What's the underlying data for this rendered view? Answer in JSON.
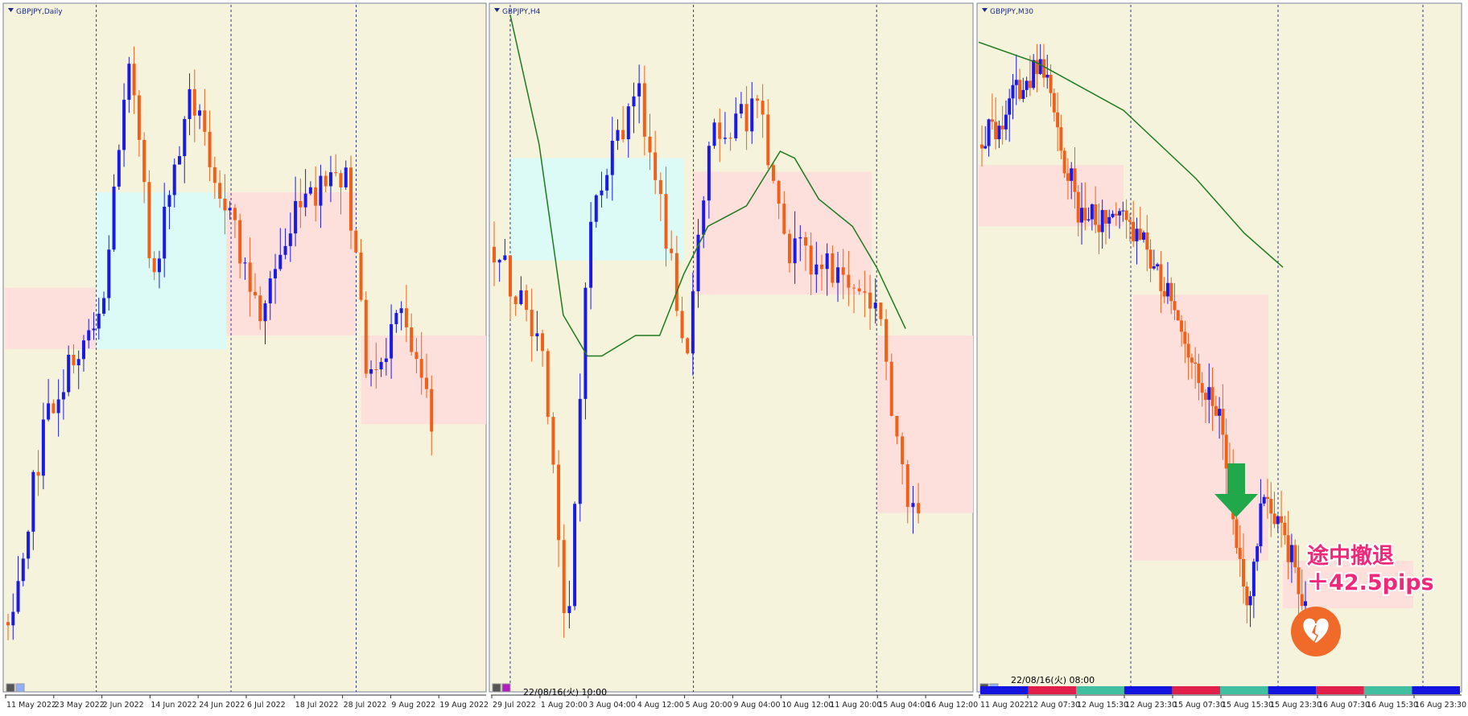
{
  "panels": [
    {
      "title": "GBPJPY,Daily",
      "x_labels": [
        "11 May 2022",
        "23 May 2022",
        "2 Jun 2022",
        "14 Jun 2022",
        "24 Jun 2022",
        "6 Jul 2022",
        "18 Jul 2022",
        "28 Jul 2022",
        "9 Aug 2022",
        "19 Aug 2022"
      ]
    },
    {
      "title": "GBPJPY,H4",
      "x_labels": [
        "29 Jul 2022",
        "1 Aug 20:00",
        "3 Aug 04:00",
        "4 Aug 12:00",
        "5 Aug 20:00",
        "9 Aug 04:00",
        "10 Aug 12:00",
        "11 Aug 20:00",
        "15 Aug 04:00",
        "16 Aug 12:00"
      ],
      "timestamp": "22/08/16(火) 10:00"
    },
    {
      "title": "GBPJPY,M30",
      "x_labels": [
        "11 Aug 2022",
        "12 Aug 07:30",
        "12 Aug 15:30",
        "12 Aug 23:30",
        "15 Aug 07:30",
        "15 Aug 15:30",
        "15 Aug 23:30",
        "16 Aug 07:30",
        "16 Aug 15:30",
        "16 Aug 23:30"
      ],
      "timestamp": "22/08/16(火) 08:00"
    }
  ],
  "annotation": {
    "line1": "途中撤退",
    "line2": "＋42.5pips"
  }
}
